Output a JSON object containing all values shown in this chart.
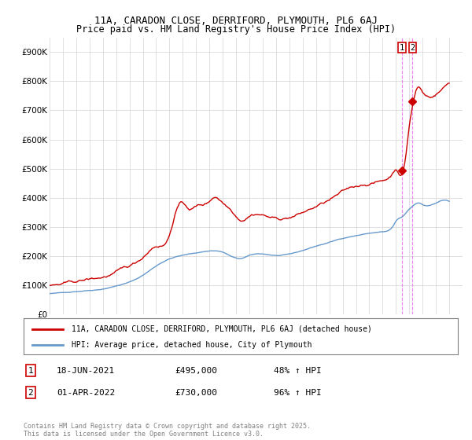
{
  "title1": "11A, CARADON CLOSE, DERRIFORD, PLYMOUTH, PL6 6AJ",
  "title2": "Price paid vs. HM Land Registry's House Price Index (HPI)",
  "ylabel_ticks": [
    "£0",
    "£100K",
    "£200K",
    "£300K",
    "£400K",
    "£500K",
    "£600K",
    "£700K",
    "£800K",
    "£900K"
  ],
  "ytick_values": [
    0,
    100000,
    200000,
    300000,
    400000,
    500000,
    600000,
    700000,
    800000,
    900000
  ],
  "ylim": [
    0,
    950000
  ],
  "xlim_start": 1995,
  "xlim_end": 2026,
  "hpi_color": "#6699cc",
  "price_color": "#cc0000",
  "dashed_color": "#ee82ee",
  "dashed_fill_color": "#f0e8f8",
  "sale1_x": 2021.46,
  "sale1_y": 495000,
  "sale2_x": 2022.25,
  "sale2_y": 730000,
  "sale1_date": "18-JUN-2021",
  "sale1_price": "£495,000",
  "sale1_hpi": "48% ↑ HPI",
  "sale2_date": "01-APR-2022",
  "sale2_price": "£730,000",
  "sale2_hpi": "96% ↑ HPI",
  "legend_red": "11A, CARADON CLOSE, DERRIFORD, PLYMOUTH, PL6 6AJ (detached house)",
  "legend_blue": "HPI: Average price, detached house, City of Plymouth",
  "footer": "Contains HM Land Registry data © Crown copyright and database right 2025.\nThis data is licensed under the Open Government Licence v3.0."
}
